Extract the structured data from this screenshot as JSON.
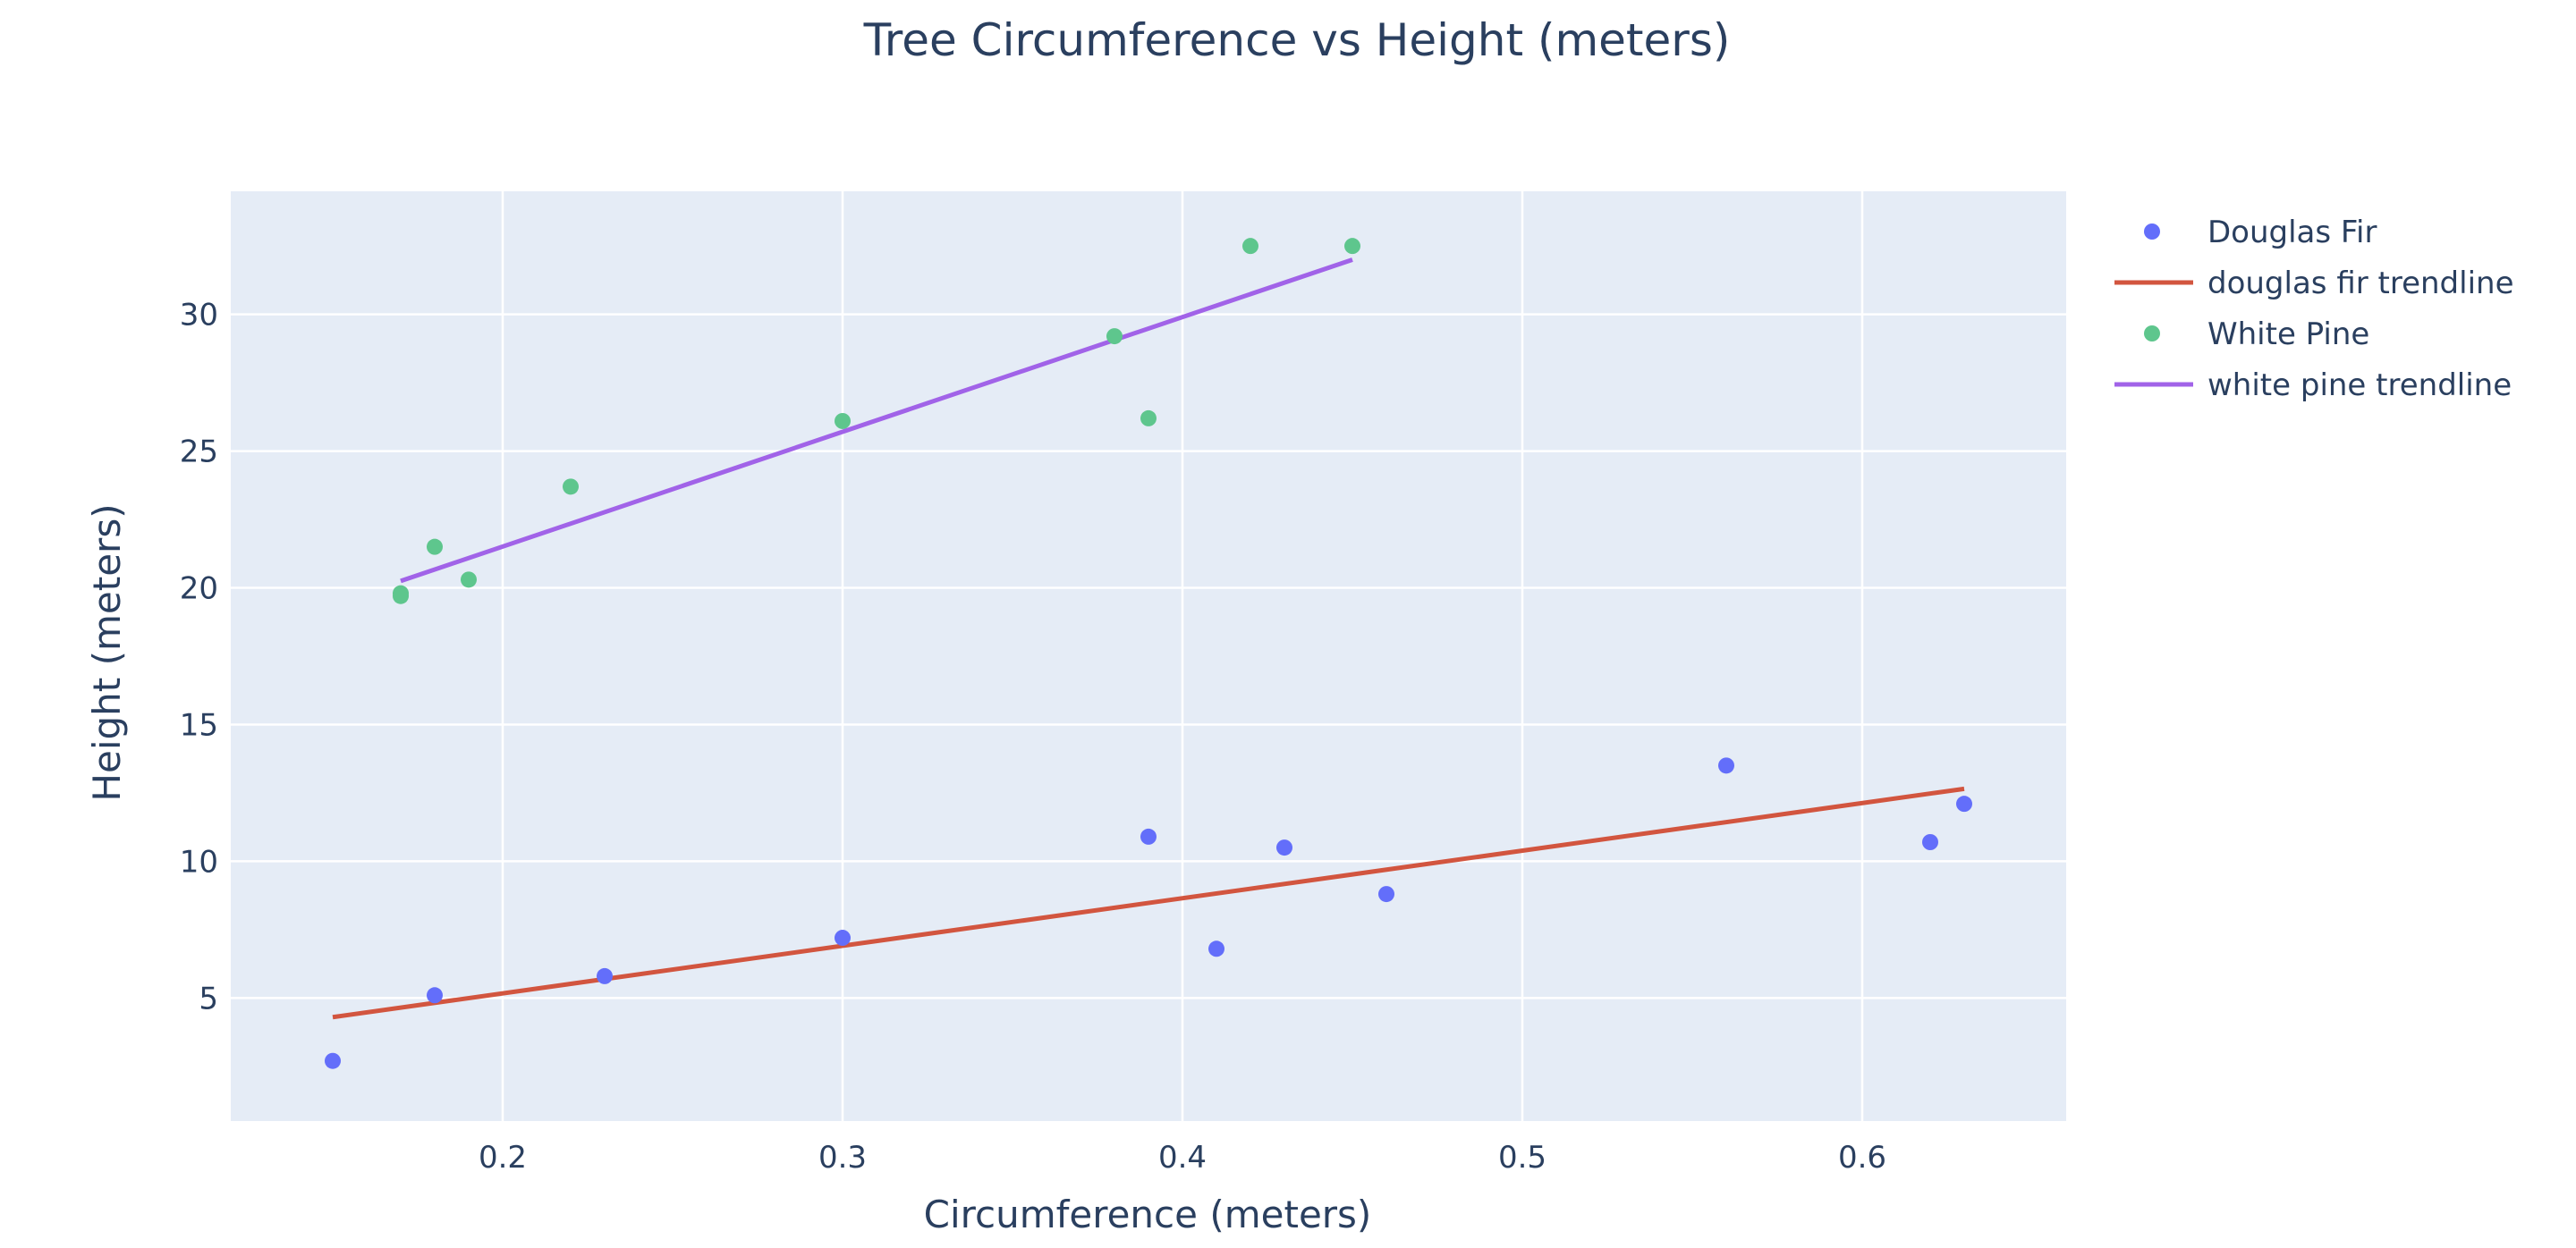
{
  "chart_data": {
    "type": "scatter",
    "title": "Tree Circumference vs Height (meters)",
    "xlabel": "Circumference (meters)",
    "ylabel": "Height (meters)",
    "xlim": [
      0.12,
      0.66
    ],
    "ylim": [
      0.5,
      34.5
    ],
    "xticks": [
      0.2,
      0.3,
      0.4,
      0.5,
      0.6
    ],
    "xtick_labels": [
      "0.2",
      "0.3",
      "0.4",
      "0.5",
      "0.6"
    ],
    "yticks": [
      5,
      10,
      15,
      20,
      25,
      30
    ],
    "ytick_labels": [
      "5",
      "10",
      "15",
      "20",
      "25",
      "30"
    ],
    "grid": true,
    "legend_position": "right",
    "plot_background": "#e5ecf6",
    "series": [
      {
        "name": "Douglas Fir",
        "kind": "markers",
        "color": "#636efa",
        "x": [
          0.15,
          0.18,
          0.23,
          0.3,
          0.39,
          0.41,
          0.43,
          0.46,
          0.56,
          0.62,
          0.63
        ],
        "y": [
          2.7,
          5.1,
          5.8,
          7.2,
          10.9,
          6.8,
          10.5,
          8.8,
          13.5,
          10.7,
          12.1
        ]
      },
      {
        "name": "douglas fir trendline",
        "kind": "line",
        "color": "#d2553f",
        "x": [
          0.15,
          0.63
        ],
        "y": [
          4.3,
          12.65
        ]
      },
      {
        "name": "White Pine",
        "kind": "markers",
        "color": "#5ec68d",
        "x": [
          0.17,
          0.17,
          0.18,
          0.19,
          0.22,
          0.3,
          0.38,
          0.39,
          0.42,
          0.45
        ],
        "y": [
          19.7,
          19.8,
          21.5,
          20.3,
          23.7,
          26.1,
          29.2,
          26.2,
          32.5,
          32.5
        ]
      },
      {
        "name": "white pine trendline",
        "kind": "line",
        "color": "#a163e8",
        "x": [
          0.17,
          0.45
        ],
        "y": [
          20.25,
          32.0
        ]
      }
    ]
  }
}
